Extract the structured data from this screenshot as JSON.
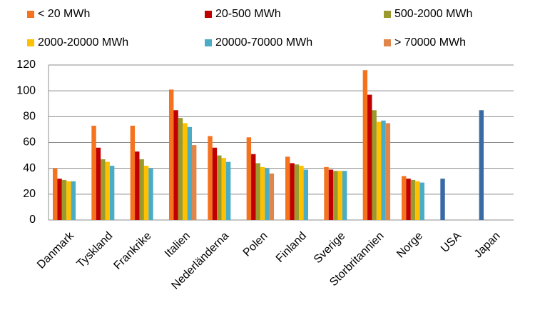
{
  "chart_data": {
    "type": "bar",
    "categories": [
      "Danmark",
      "Tyskland",
      "Frankrike",
      "Italien",
      "Nederländerna",
      "Polen",
      "Finland",
      "Sverige",
      "Storbritannien",
      "Norge",
      "USA",
      "Japan"
    ],
    "series": [
      {
        "name": "< 20 MWh",
        "color": "#f5731f",
        "values": [
          40,
          73,
          73,
          101,
          65,
          64,
          49,
          41,
          116,
          34,
          null,
          null
        ]
      },
      {
        "name": "20-500 MWh",
        "color": "#c00000",
        "values": [
          32,
          56,
          53,
          85,
          56,
          51,
          44,
          39,
          97,
          32,
          null,
          null
        ]
      },
      {
        "name": "500-2000 MWh",
        "color": "#9a9a2e",
        "values": [
          31,
          47,
          47,
          79,
          50,
          44,
          43,
          38,
          85,
          31,
          null,
          null
        ]
      },
      {
        "name": "2000-20000 MWh",
        "color": "#ffc000",
        "values": [
          30,
          45,
          42,
          75,
          48,
          41,
          42,
          38,
          76,
          30,
          null,
          null
        ]
      },
      {
        "name": "20000-70000 MWh",
        "color": "#4bacc6",
        "values": [
          30,
          42,
          40,
          72,
          45,
          40,
          39,
          38,
          77,
          29,
          null,
          null
        ]
      },
      {
        "name": "> 70000 MWh",
        "color": "#e0864a",
        "values": [
          null,
          null,
          null,
          58,
          null,
          36,
          null,
          null,
          75,
          null,
          null,
          null
        ]
      },
      {
        "color": "#3a6aa4",
        "values": [
          null,
          null,
          null,
          null,
          null,
          null,
          null,
          null,
          null,
          null,
          32,
          85
        ]
      }
    ],
    "ylim": [
      0,
      120
    ],
    "yticks": [
      0,
      20,
      40,
      60,
      80,
      100,
      120
    ],
    "grid": true
  }
}
